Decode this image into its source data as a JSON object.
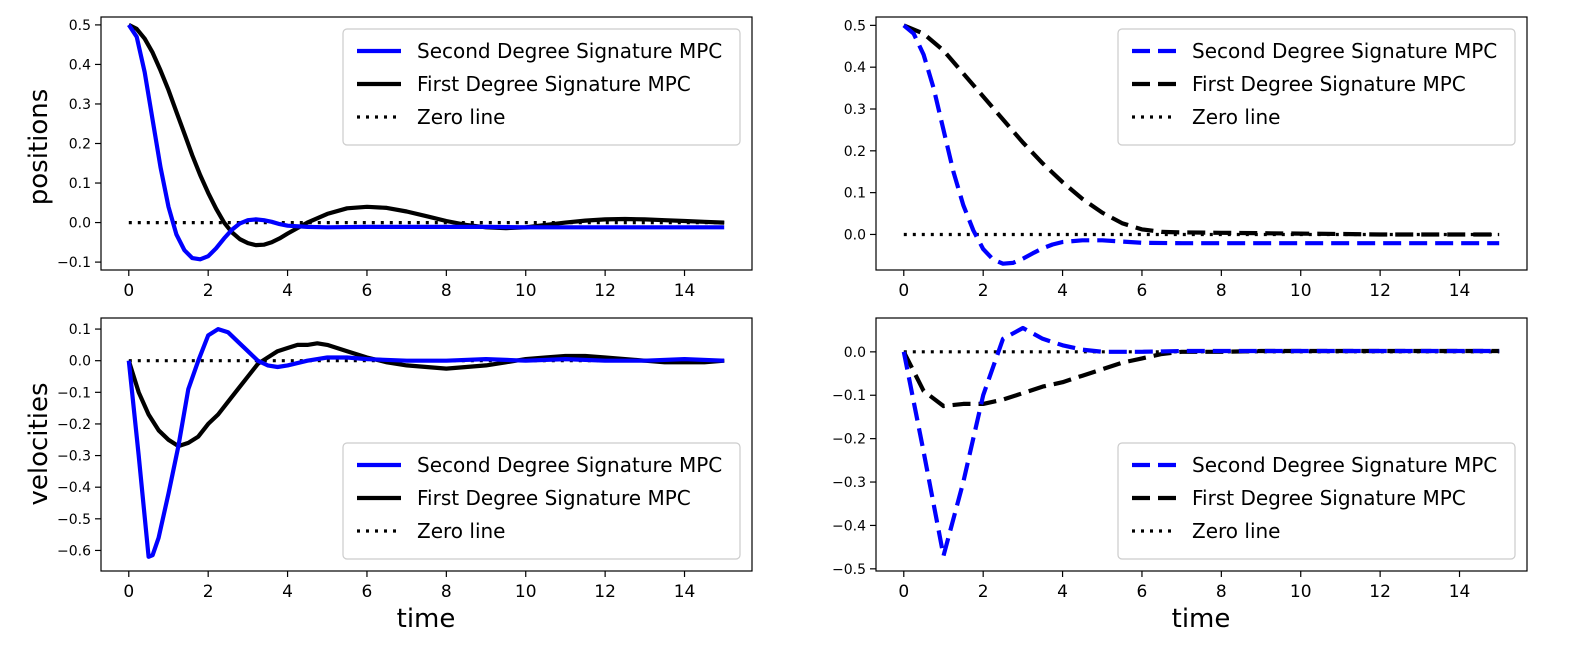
{
  "colors": {
    "second": "#0000ff",
    "first": "#000000",
    "zero": "#000000"
  },
  "chart_data": [
    {
      "id": "top-left",
      "type": "line",
      "xlabel": "",
      "ylabel": "positions",
      "xlim": [
        -0.7,
        15.7
      ],
      "ylim": [
        -0.12,
        0.52
      ],
      "xticks": [
        0,
        2,
        4,
        6,
        8,
        10,
        12,
        14
      ],
      "yticks": [
        -0.1,
        0.0,
        0.1,
        0.2,
        0.3,
        0.4,
        0.5
      ],
      "ytick_labels": [
        "−0.1",
        "0.0",
        "0.1",
        "0.2",
        "0.3",
        "0.4",
        "0.5"
      ],
      "legend": "top-right",
      "series": [
        {
          "name": "Second Degree Signature MPC",
          "key": "second",
          "style": "solid",
          "x": [
            0,
            0.2,
            0.4,
            0.6,
            0.8,
            1.0,
            1.2,
            1.4,
            1.6,
            1.8,
            2.0,
            2.2,
            2.4,
            2.6,
            2.8,
            3.0,
            3.2,
            3.4,
            3.6,
            3.8,
            4.0,
            4.5,
            5,
            6,
            7,
            8,
            9,
            10,
            11,
            12,
            13,
            14,
            15
          ],
          "y": [
            0.5,
            0.47,
            0.38,
            0.26,
            0.14,
            0.04,
            -0.03,
            -0.07,
            -0.09,
            -0.093,
            -0.085,
            -0.065,
            -0.04,
            -0.018,
            -0.002,
            0.006,
            0.008,
            0.006,
            0.002,
            -0.004,
            -0.008,
            -0.011,
            -0.012,
            -0.011,
            -0.011,
            -0.011,
            -0.011,
            -0.012,
            -0.012,
            -0.012,
            -0.012,
            -0.012,
            -0.012
          ]
        },
        {
          "name": "First Degree Signature MPC",
          "key": "first",
          "style": "solid",
          "x": [
            0,
            0.2,
            0.4,
            0.6,
            0.8,
            1.0,
            1.2,
            1.4,
            1.6,
            1.8,
            2.0,
            2.2,
            2.4,
            2.6,
            2.8,
            3.0,
            3.2,
            3.4,
            3.6,
            3.8,
            4.0,
            4.5,
            5,
            5.5,
            6,
            6.5,
            7,
            7.5,
            8,
            8.5,
            9,
            9.5,
            10,
            10.5,
            11,
            11.5,
            12,
            12.5,
            13,
            13.5,
            14,
            14.5,
            15
          ],
          "y": [
            0.5,
            0.49,
            0.465,
            0.43,
            0.385,
            0.335,
            0.28,
            0.225,
            0.17,
            0.12,
            0.075,
            0.035,
            0.0,
            -0.025,
            -0.042,
            -0.052,
            -0.057,
            -0.056,
            -0.05,
            -0.04,
            -0.028,
            0.0,
            0.022,
            0.036,
            0.04,
            0.037,
            0.028,
            0.016,
            0.004,
            -0.006,
            -0.012,
            -0.014,
            -0.012,
            -0.006,
            0.0,
            0.005,
            0.008,
            0.009,
            0.008,
            0.006,
            0.004,
            0.002,
            0.0
          ]
        },
        {
          "name": "Zero line",
          "key": "zero",
          "style": "dotted",
          "x": [
            0,
            15
          ],
          "y": [
            0,
            0
          ]
        }
      ]
    },
    {
      "id": "top-right",
      "type": "line",
      "xlabel": "",
      "ylabel": "",
      "xlim": [
        -0.7,
        15.7
      ],
      "ylim": [
        -0.085,
        0.52
      ],
      "xticks": [
        0,
        2,
        4,
        6,
        8,
        10,
        12,
        14
      ],
      "yticks": [
        0.0,
        0.1,
        0.2,
        0.3,
        0.4,
        0.5
      ],
      "ytick_labels": [
        "0.0",
        "0.1",
        "0.2",
        "0.3",
        "0.4",
        "0.5"
      ],
      "legend": "top-right",
      "series": [
        {
          "name": "Second Degree Signature MPC",
          "key": "second",
          "style": "dashed",
          "x": [
            0,
            0.25,
            0.5,
            0.75,
            1.0,
            1.25,
            1.5,
            1.75,
            2.0,
            2.25,
            2.5,
            2.75,
            3.0,
            3.25,
            3.5,
            3.75,
            4.0,
            4.5,
            5,
            6,
            7,
            8,
            9,
            10,
            11,
            12,
            13,
            14,
            15
          ],
          "y": [
            0.5,
            0.48,
            0.43,
            0.35,
            0.25,
            0.15,
            0.07,
            0.01,
            -0.035,
            -0.06,
            -0.07,
            -0.068,
            -0.058,
            -0.045,
            -0.033,
            -0.024,
            -0.018,
            -0.014,
            -0.014,
            -0.02,
            -0.021,
            -0.021,
            -0.021,
            -0.021,
            -0.021,
            -0.021,
            -0.021,
            -0.021,
            -0.021
          ]
        },
        {
          "name": "First Degree Signature MPC",
          "key": "first",
          "style": "dashed",
          "x": [
            0,
            0.5,
            1.0,
            1.5,
            2.0,
            2.5,
            3.0,
            3.5,
            4.0,
            4.5,
            5.0,
            5.5,
            6.0,
            6.5,
            7,
            8,
            9,
            10,
            11,
            12,
            13,
            14,
            15
          ],
          "y": [
            0.5,
            0.48,
            0.44,
            0.385,
            0.33,
            0.275,
            0.22,
            0.17,
            0.125,
            0.085,
            0.052,
            0.027,
            0.012,
            0.006,
            0.005,
            0.004,
            0.003,
            0.002,
            0.001,
            0.0,
            0.0,
            0.0,
            0.0
          ]
        },
        {
          "name": "Zero line",
          "key": "zero",
          "style": "dotted",
          "x": [
            0,
            15
          ],
          "y": [
            0,
            0
          ]
        }
      ]
    },
    {
      "id": "bottom-left",
      "type": "line",
      "xlabel": "time",
      "ylabel": "velocities",
      "xlim": [
        -0.7,
        15.7
      ],
      "ylim": [
        -0.665,
        0.135
      ],
      "xticks": [
        0,
        2,
        4,
        6,
        8,
        10,
        12,
        14
      ],
      "yticks": [
        -0.6,
        -0.5,
        -0.4,
        -0.3,
        -0.2,
        -0.1,
        0.0,
        0.1
      ],
      "ytick_labels": [
        "−0.6",
        "−0.5",
        "−0.4",
        "−0.3",
        "−0.2",
        "−0.1",
        "0.0",
        "0.1"
      ],
      "legend": "bottom-right",
      "series": [
        {
          "name": "Second Degree Signature MPC",
          "key": "second",
          "style": "solid",
          "x": [
            0,
            0.25,
            0.5,
            0.6,
            0.75,
            1.0,
            1.25,
            1.5,
            1.75,
            2.0,
            2.25,
            2.5,
            2.75,
            3.0,
            3.25,
            3.5,
            3.75,
            4.0,
            4.5,
            5,
            5.5,
            6,
            7,
            8,
            9,
            10,
            11,
            12,
            13,
            14,
            15
          ],
          "y": [
            0,
            -0.3,
            -0.62,
            -0.615,
            -0.56,
            -0.42,
            -0.27,
            -0.09,
            0.0,
            0.08,
            0.1,
            0.09,
            0.06,
            0.03,
            0.0,
            -0.015,
            -0.02,
            -0.015,
            0.0,
            0.01,
            0.01,
            0.005,
            0.0,
            0.0,
            0.005,
            0.0,
            0.005,
            0.0,
            0.0,
            0.005,
            0.0
          ]
        },
        {
          "name": "First Degree Signature MPC",
          "key": "first",
          "style": "solid",
          "x": [
            0,
            0.25,
            0.5,
            0.75,
            1.0,
            1.25,
            1.5,
            1.75,
            2.0,
            2.25,
            2.5,
            2.75,
            3.0,
            3.25,
            3.5,
            3.75,
            4.0,
            4.25,
            4.5,
            4.75,
            5.0,
            5.5,
            6.0,
            6.5,
            7,
            7.5,
            8,
            8.5,
            9,
            9.5,
            10,
            10.5,
            11,
            11.5,
            12,
            12.5,
            13,
            13.5,
            14,
            14.5,
            15
          ],
          "y": [
            0,
            -0.1,
            -0.17,
            -0.22,
            -0.25,
            -0.27,
            -0.26,
            -0.24,
            -0.2,
            -0.17,
            -0.13,
            -0.09,
            -0.05,
            -0.01,
            0.01,
            0.03,
            0.04,
            0.05,
            0.05,
            0.055,
            0.05,
            0.03,
            0.01,
            -0.005,
            -0.015,
            -0.02,
            -0.025,
            -0.02,
            -0.015,
            -0.005,
            0.005,
            0.01,
            0.015,
            0.015,
            0.01,
            0.005,
            0.0,
            -0.005,
            -0.005,
            -0.005,
            0.0
          ]
        },
        {
          "name": "Zero line",
          "key": "zero",
          "style": "dotted",
          "x": [
            0,
            15
          ],
          "y": [
            0,
            0
          ]
        }
      ]
    },
    {
      "id": "bottom-right",
      "type": "line",
      "xlabel": "time",
      "ylabel": "",
      "xlim": [
        -0.7,
        15.7
      ],
      "ylim": [
        -0.505,
        0.078
      ],
      "xticks": [
        0,
        2,
        4,
        6,
        8,
        10,
        12,
        14
      ],
      "yticks": [
        -0.5,
        -0.4,
        -0.3,
        -0.2,
        -0.1,
        0.0
      ],
      "ytick_labels": [
        "−0.5",
        "−0.4",
        "−0.3",
        "−0.2",
        "−0.1",
        "0.0"
      ],
      "legend": "bottom-right",
      "series": [
        {
          "name": "Second Degree Signature MPC",
          "key": "second",
          "style": "dashed",
          "x": [
            0,
            0.5,
            1.0,
            1.5,
            2.0,
            2.5,
            3.0,
            3.5,
            4.0,
            4.5,
            5.0,
            5.5,
            6,
            7,
            8,
            9,
            10,
            11,
            12,
            13,
            14,
            15
          ],
          "y": [
            0,
            -0.23,
            -0.47,
            -0.3,
            -0.1,
            0.03,
            0.055,
            0.03,
            0.015,
            0.005,
            0.0,
            0.0,
            0.0,
            0.002,
            0.002,
            0.002,
            0.002,
            0.002,
            0.002,
            0.002,
            0.002,
            0.002
          ]
        },
        {
          "name": "First Degree Signature MPC",
          "key": "first",
          "style": "dashed",
          "x": [
            0,
            0.5,
            1.0,
            1.5,
            2.0,
            2.5,
            3.0,
            3.5,
            4.0,
            4.5,
            5.0,
            5.5,
            6.0,
            6.5,
            7.0,
            7.5,
            8,
            9,
            10,
            11,
            12,
            13,
            14,
            15
          ],
          "y": [
            0,
            -0.09,
            -0.125,
            -0.12,
            -0.12,
            -0.11,
            -0.095,
            -0.08,
            -0.07,
            -0.055,
            -0.04,
            -0.025,
            -0.015,
            -0.005,
            0.0,
            0.0,
            0.0,
            0.002,
            0.002,
            0.002,
            0.002,
            0.002,
            0.002,
            0.002
          ]
        },
        {
          "name": "Zero line",
          "key": "zero",
          "style": "dotted",
          "x": [
            0,
            15
          ],
          "y": [
            0,
            0
          ]
        }
      ]
    }
  ]
}
